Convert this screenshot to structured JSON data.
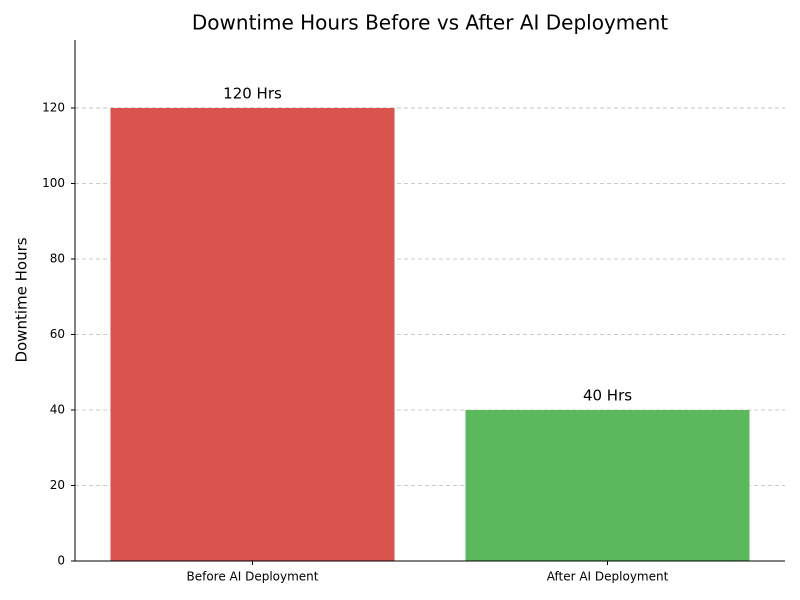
{
  "chart_data": {
    "type": "bar",
    "title": "Downtime Hours Before vs After AI Deployment",
    "y_label": "Downtime Hours",
    "categories": [
      "Before AI Deployment",
      "After AI Deployment"
    ],
    "values": [
      120,
      40
    ],
    "value_labels": [
      "120 Hrs",
      "40 Hrs"
    ],
    "colors": [
      "#d9534f",
      "#5cb85c"
    ],
    "ylim": [
      0,
      138
    ],
    "yticks": [
      0,
      20,
      40,
      60,
      80,
      100,
      120
    ],
    "grid": true
  }
}
